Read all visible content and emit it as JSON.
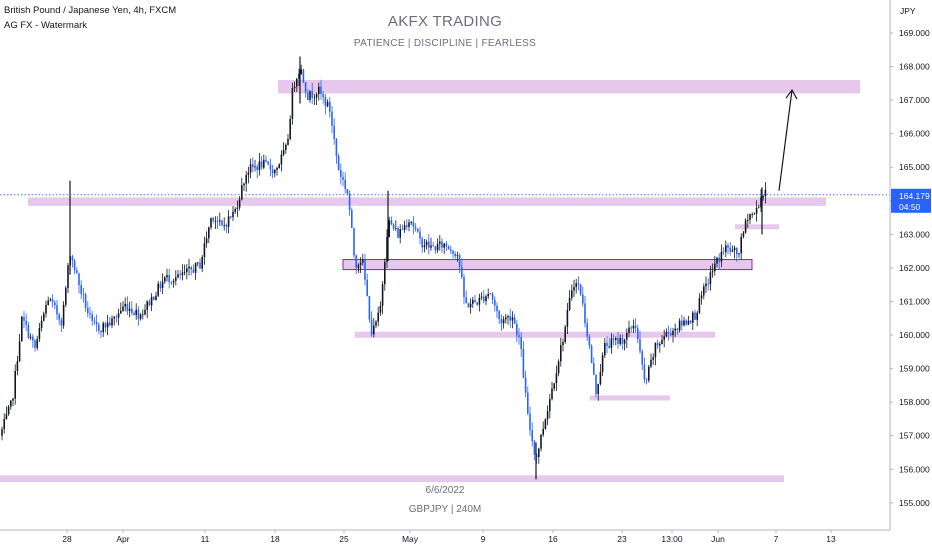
{
  "header": {
    "symbol_line": "British Pound / Japanese Yen, 4h, FXCM",
    "indicator_line": "AG FX - Watermark"
  },
  "watermark": {
    "title": "AKFX TRADING",
    "subtitle": "PATIENCE  |  DISCIPLINE  |  FEARLESS",
    "date": "6/6/2022",
    "symbol": "GBPJPY  |  240M"
  },
  "colors": {
    "up_candle": "#131722",
    "down_candle": "#2962ff",
    "zone_fill": "#e1bee7",
    "current_price_badge": "#2962ff",
    "current_price_line": "#2962ff"
  },
  "chart_data": {
    "type": "candlestick",
    "currency_label": "JPY",
    "ylim": [
      154.6,
      169.5
    ],
    "y_ticks": [
      155.0,
      156.0,
      157.0,
      158.0,
      159.0,
      160.0,
      161.0,
      162.0,
      163.0,
      164.0,
      165.0,
      166.0,
      167.0,
      168.0,
      169.0
    ],
    "y_tick_labels": [
      "155.000",
      "156.000",
      "157.000",
      "158.000",
      "159.000",
      "160.000",
      "161.000",
      "162.000",
      "163.000",
      "164.000",
      "165.000",
      "166.000",
      "167.000",
      "168.000",
      "169.000"
    ],
    "x_ticks": [
      "28",
      "Apr",
      "11",
      "18",
      "25",
      "May",
      "9",
      "16",
      "23",
      "13:00",
      "Jun",
      "7",
      "13"
    ],
    "current_price": 164.179,
    "current_price_label": "164.179",
    "countdown": "04:50",
    "close_path": [
      [
        0,
        157.0
      ],
      [
        12,
        158.0
      ],
      [
        22,
        160.5
      ],
      [
        35,
        159.6
      ],
      [
        48,
        161.1
      ],
      [
        62,
        160.4
      ],
      [
        70,
        162.5
      ],
      [
        80,
        161.4
      ],
      [
        92,
        160.3
      ],
      [
        100,
        160.2
      ],
      [
        112,
        160.4
      ],
      [
        125,
        160.9
      ],
      [
        140,
        160.6
      ],
      [
        152,
        161.1
      ],
      [
        165,
        161.7
      ],
      [
        178,
        161.7
      ],
      [
        200,
        162.1
      ],
      [
        212,
        163.6
      ],
      [
        222,
        163.2
      ],
      [
        235,
        163.7
      ],
      [
        247,
        164.9
      ],
      [
        262,
        165.1
      ],
      [
        275,
        164.9
      ],
      [
        287,
        165.6
      ],
      [
        293,
        167.4
      ],
      [
        300,
        168.0
      ],
      [
        308,
        167.1
      ],
      [
        318,
        167.3
      ],
      [
        330,
        166.7
      ],
      [
        338,
        165.0
      ],
      [
        348,
        164.2
      ],
      [
        355,
        162.1
      ],
      [
        362,
        162.3
      ],
      [
        372,
        160.0
      ],
      [
        380,
        160.7
      ],
      [
        388,
        163.4
      ],
      [
        398,
        163.0
      ],
      [
        410,
        163.5
      ],
      [
        420,
        162.8
      ],
      [
        432,
        162.6
      ],
      [
        445,
        162.7
      ],
      [
        458,
        162.4
      ],
      [
        465,
        160.9
      ],
      [
        478,
        161.0
      ],
      [
        490,
        161.3
      ],
      [
        500,
        160.4
      ],
      [
        512,
        160.6
      ],
      [
        520,
        159.8
      ],
      [
        528,
        157.5
      ],
      [
        536,
        156.3
      ],
      [
        545,
        157.5
      ],
      [
        555,
        158.8
      ],
      [
        565,
        160.2
      ],
      [
        573,
        161.6
      ],
      [
        580,
        161.4
      ],
      [
        588,
        159.9
      ],
      [
        596,
        158.3
      ],
      [
        605,
        159.7
      ],
      [
        615,
        159.8
      ],
      [
        625,
        159.9
      ],
      [
        635,
        160.4
      ],
      [
        645,
        158.5
      ],
      [
        655,
        159.6
      ],
      [
        665,
        160.0
      ],
      [
        680,
        160.3
      ],
      [
        695,
        160.6
      ],
      [
        705,
        161.4
      ],
      [
        715,
        162.1
      ],
      [
        725,
        162.6
      ],
      [
        738,
        162.4
      ],
      [
        748,
        163.6
      ],
      [
        755,
        163.6
      ],
      [
        762,
        164.2
      ],
      [
        766,
        164.18
      ]
    ],
    "zones": [
      {
        "x0": 278,
        "x1": 860,
        "y_low": 167.2,
        "y_high": 167.6
      },
      {
        "x0": 28,
        "x1": 826,
        "y_low": 163.85,
        "y_high": 164.1
      },
      {
        "x0": 343,
        "x1": 752,
        "y_low": 161.95,
        "y_high": 162.25
      },
      {
        "x0": 355,
        "x1": 715,
        "y_low": 159.92,
        "y_high": 160.1
      },
      {
        "x0": 590,
        "x1": 670,
        "y_low": 158.05,
        "y_high": 158.2
      },
      {
        "x0": 735,
        "x1": 779,
        "y_low": 163.15,
        "y_high": 163.3
      },
      {
        "x0": 0,
        "x1": 784,
        "y_low": 155.62,
        "y_high": 155.82
      }
    ],
    "projection_arrow": {
      "x0": 779,
      "y0": 164.3,
      "x1": 792,
      "y1": 167.3
    }
  }
}
